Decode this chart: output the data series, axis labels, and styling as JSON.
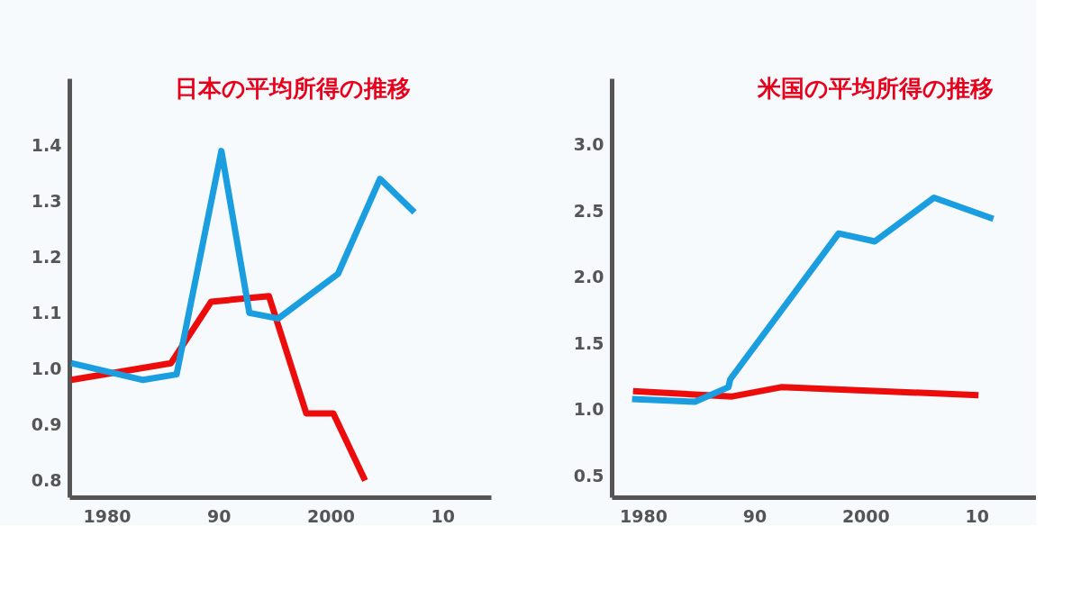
{
  "chart_data": [
    {
      "type": "line",
      "title": "日本の平均所得の推移",
      "xlim": [
        "1976-09",
        "2014-05"
      ],
      "xticks": [
        "1980",
        {
          "value": "1990",
          "label": "90"
        },
        "2000",
        {
          "value": "2010",
          "label": "10"
        }
      ],
      "ylim": [
        0.77,
        1.52
      ],
      "yticks": [
        0.8,
        0.9,
        {
          "value": 1,
          "label": "1.0"
        },
        1.1,
        1.2,
        1.3,
        1.4
      ],
      "grid": false,
      "series": [
        {
          "color": "#ec0c0c",
          "x": [
            "1976-11",
            "1985-10",
            "1989-05",
            "1994-07",
            "1997-11",
            "2000-04",
            "2003-02"
          ],
          "values": [
            0.98,
            1.01,
            1.12,
            1.13,
            0.92,
            0.92,
            0.8
          ]
        },
        {
          "color": "#1b9ee0",
          "x": [
            "1976-11",
            "1983-04",
            "1986-04",
            "1990-04",
            "1992-10",
            "1995-05",
            "2000-09",
            "2004-06",
            "2007-07"
          ],
          "values": [
            1.01,
            0.98,
            0.99,
            1.39,
            1.1,
            1.09,
            1.17,
            1.34,
            1.28
          ]
        }
      ]
    },
    {
      "type": "line",
      "title": "米国の平均所得の推移",
      "xlim": [
        "1977-03",
        "2015-05"
      ],
      "xticks": [
        "1980",
        {
          "value": "1990",
          "label": "90"
        },
        "2000",
        {
          "value": "2010",
          "label": "10"
        }
      ],
      "ylim": [
        0.34,
        3.5
      ],
      "yticks": [
        0.5,
        {
          "value": 1,
          "label": "1.0"
        },
        1.5,
        {
          "value": 2,
          "label": "2.0"
        },
        2.5,
        {
          "value": 3,
          "label": "3.0"
        }
      ],
      "grid": false,
      "series": [
        {
          "color": "#ec0c0c",
          "x": [
            "1979-02",
            "1988-01",
            "1992-06",
            "2010-03"
          ],
          "values": [
            1.14,
            1.1,
            1.17,
            1.11
          ]
        },
        {
          "color": "#1b9ee0",
          "x": [
            "1979-01",
            "1984-09",
            "1987-09",
            "1987-11",
            "1997-08",
            "2000-11",
            "2006-03",
            "2011-07"
          ],
          "values": [
            1.08,
            1.06,
            1.17,
            1.23,
            2.33,
            2.27,
            2.6,
            2.44
          ]
        }
      ]
    }
  ]
}
